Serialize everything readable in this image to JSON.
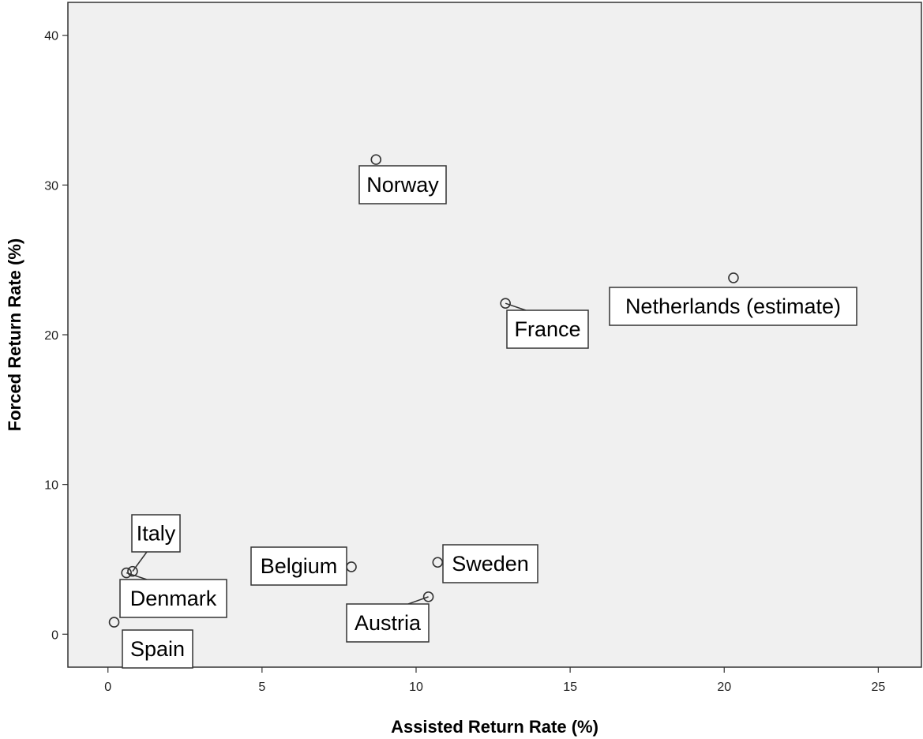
{
  "chart_data": {
    "type": "scatter",
    "title": "",
    "xlabel": "Assisted Return Rate (%)",
    "ylabel": "Forced Return Rate (%)",
    "xlim": [
      -1.3,
      26.4
    ],
    "ylim": [
      -2.2,
      42.2
    ],
    "x_ticks": [
      0,
      5,
      10,
      15,
      20,
      25
    ],
    "y_ticks": [
      0,
      10,
      20,
      30,
      40
    ],
    "grid": false,
    "colors": {
      "plot_background": "#f0f0f0",
      "marker_edge": "#333333"
    },
    "points": [
      {
        "label": "Norway",
        "x": 8.7,
        "y": 31.7
      },
      {
        "label": "Netherlands (estimate)",
        "x": 20.3,
        "y": 23.8
      },
      {
        "label": "France",
        "x": 12.9,
        "y": 22.1
      },
      {
        "label": "Italy",
        "x": 0.8,
        "y": 4.2
      },
      {
        "label": "Denmark",
        "x": 0.6,
        "y": 4.1
      },
      {
        "label": "Belgium",
        "x": 7.9,
        "y": 4.5
      },
      {
        "label": "Sweden",
        "x": 10.7,
        "y": 4.8
      },
      {
        "label": "Austria",
        "x": 10.4,
        "y": 2.5
      },
      {
        "label": "Spain",
        "x": 0.2,
        "y": 0.8
      }
    ]
  }
}
